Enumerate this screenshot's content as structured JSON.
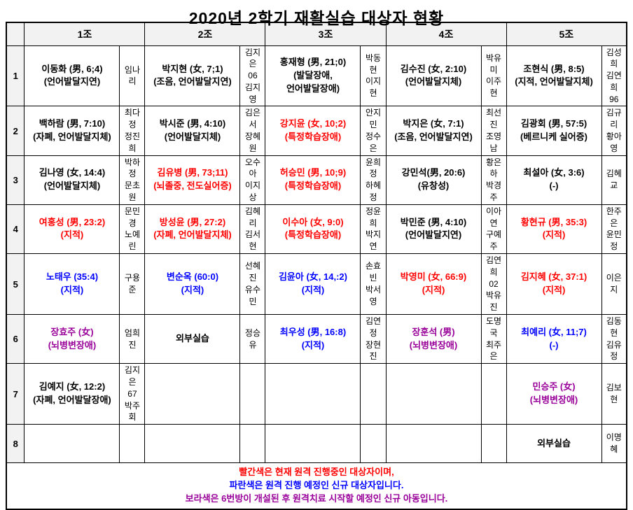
{
  "title": "2020년 2학기 재활실습 대상자 현황",
  "columns": [
    "1조",
    "2조",
    "3조",
    "4조",
    "5조"
  ],
  "colors": {
    "red": "#ff0000",
    "blue": "#0000ff",
    "purple": "#990099",
    "black": "#000000",
    "header_bg": "#f2f2f2"
  },
  "rows": [
    {
      "num": "1",
      "cells": [
        {
          "main": "이동화 (男, 6;4)\n(언어발달지연)",
          "color": "black",
          "helper": "임나리"
        },
        {
          "main": "박지현 (女, 7;1)\n(조음, 언어발달지연)",
          "color": "black",
          "helper": "김지은\n06\n김지영"
        },
        {
          "main": "홍재형 (男, 21;0)\n(발달장애,\n언어발달장애)",
          "color": "black",
          "helper": "박동현\n이지현"
        },
        {
          "main": "김수진 (女, 2:10)\n(언어발달지체)",
          "color": "black",
          "helper": "박유미\n이주현"
        },
        {
          "main": "조현식 (男, 8:5)\n(지적, 언어발달지체)",
          "color": "black",
          "helper": "김성희\n김연희\n96"
        }
      ]
    },
    {
      "num": "2",
      "cells": [
        {
          "main": "백하람 (男, 7:10)\n(자폐, 언어발달지체)",
          "color": "black",
          "helper": "최다정\n정진희"
        },
        {
          "main": "박시준 (男, 4:10)\n(언어발달지체)",
          "color": "black",
          "helper": "김은서\n장혜원"
        },
        {
          "main": "강지윤 (女, 10;2)\n(특정학습장애)",
          "color": "red",
          "helper": "안지민\n정수은"
        },
        {
          "main": "박지은 (女, 7:1)\n(조음, 언어발달지연)",
          "color": "black",
          "helper": "최선진\n조영남"
        },
        {
          "main": "김광회 (男, 57:5)\n(베르니케 실어증)",
          "color": "black",
          "helper": "김규리\n황아영"
        }
      ]
    },
    {
      "num": "3",
      "cells": [
        {
          "main": "김나영 (女, 14:4)\n(언어발달지체)",
          "color": "black",
          "helper": "박하정\n문초원"
        },
        {
          "main": "김유병 (男, 73;11)\n(뇌졸중, 전도실어증)",
          "color": "red",
          "helper": "오수아\n이지상"
        },
        {
          "main": "허승민 (男, 10;9)\n(특정학습장애)",
          "color": "red",
          "helper": "윤희정\n하혜정"
        },
        {
          "main": "강민석(男, 20:6)\n(유창성)",
          "color": "black",
          "helper": "황은하\n박경주"
        },
        {
          "main": "최설아 (女, 3:6)\n(-)",
          "color": "black",
          "helper": "김혜교"
        }
      ]
    },
    {
      "num": "4",
      "cells": [
        {
          "main": "여홍성 (男, 23:2)\n(지적)",
          "color": "red",
          "helper": "문민경\n노예린"
        },
        {
          "main": "방성윤 (男, 27:2)\n(자폐, 언어발달지체)",
          "color": "red",
          "helper": "김혜리\n김서현"
        },
        {
          "main": "이수아 (女, 9:0)\n(특정학습장애)",
          "color": "red",
          "helper": "정윤희\n박지연"
        },
        {
          "main": "박민준 (男, 4:10)\n(언어발달지연)",
          "color": "black",
          "helper": "이아연\n구예주"
        },
        {
          "main": "황현규 (男, 35:3)\n(지적)",
          "color": "red",
          "helper": "한주은\n윤민정"
        }
      ]
    },
    {
      "num": "5",
      "cells": [
        {
          "main": "노태우 (35:4)\n(지적)",
          "color": "blue",
          "helper": "구용준"
        },
        {
          "main": "변순옥 (60:0)\n(지적)",
          "color": "blue",
          "helper": "선혜진\n유수민"
        },
        {
          "main": "김윤아 (女, 14,:2)\n(지적)",
          "color": "blue",
          "helper": "손효빈\n박서영"
        },
        {
          "main": "박영미 (女, 66:9)\n(지적)",
          "color": "red",
          "helper": "김연희\n02\n박유진"
        },
        {
          "main": "김지혜 (女, 37:1)\n(지적)",
          "color": "red",
          "helper": "이은지"
        }
      ]
    },
    {
      "num": "6",
      "cells": [
        {
          "main": "장효주 (女)\n(뇌병변장애)",
          "color": "purple",
          "helper": "엄희진"
        },
        {
          "main": "외부실습",
          "color": "black",
          "helper": "정승유"
        },
        {
          "main": "최우성 (男, 16:8)\n(지적)",
          "color": "blue",
          "helper": "김연정\n장현진"
        },
        {
          "main": "장훈석 (男)\n(뇌병변장애)",
          "color": "purple",
          "helper": "도명국\n최주은"
        },
        {
          "main": "최예리 (女, 11;7)\n(-)",
          "color": "blue",
          "helper": "김동현\n김유정"
        }
      ]
    },
    {
      "num": "7",
      "cells": [
        {
          "main": "김예지 (女, 12:2)\n(자폐, 언어발달장애)",
          "color": "black",
          "helper": "김지은\n67\n박주회"
        },
        {
          "main": "",
          "color": "black",
          "helper": ""
        },
        {
          "main": "",
          "color": "black",
          "helper": ""
        },
        {
          "main": "",
          "color": "black",
          "helper": ""
        },
        {
          "main": "민승주 (女)\n(뇌병변장애)",
          "color": "purple",
          "helper": "김보현"
        }
      ]
    },
    {
      "num": "8",
      "cells": [
        {
          "main": "",
          "color": "black",
          "helper": ""
        },
        {
          "main": "",
          "color": "black",
          "helper": ""
        },
        {
          "main": "",
          "color": "black",
          "helper": ""
        },
        {
          "main": "",
          "color": "black",
          "helper": ""
        },
        {
          "main": "외부실습",
          "color": "black",
          "helper": "이명혜"
        }
      ]
    }
  ],
  "legend": [
    {
      "text": "빨간색은 현재 원격 진행중인 대상자이며,",
      "color": "red"
    },
    {
      "text": "파란색은 원격 진행 예정인 신규 대상자입니다.",
      "color": "blue"
    },
    {
      "text": "보라색은 6번방이 개설된 후 원격치료 시작할 예정인 신규 아동입니다.",
      "color": "purple"
    }
  ]
}
